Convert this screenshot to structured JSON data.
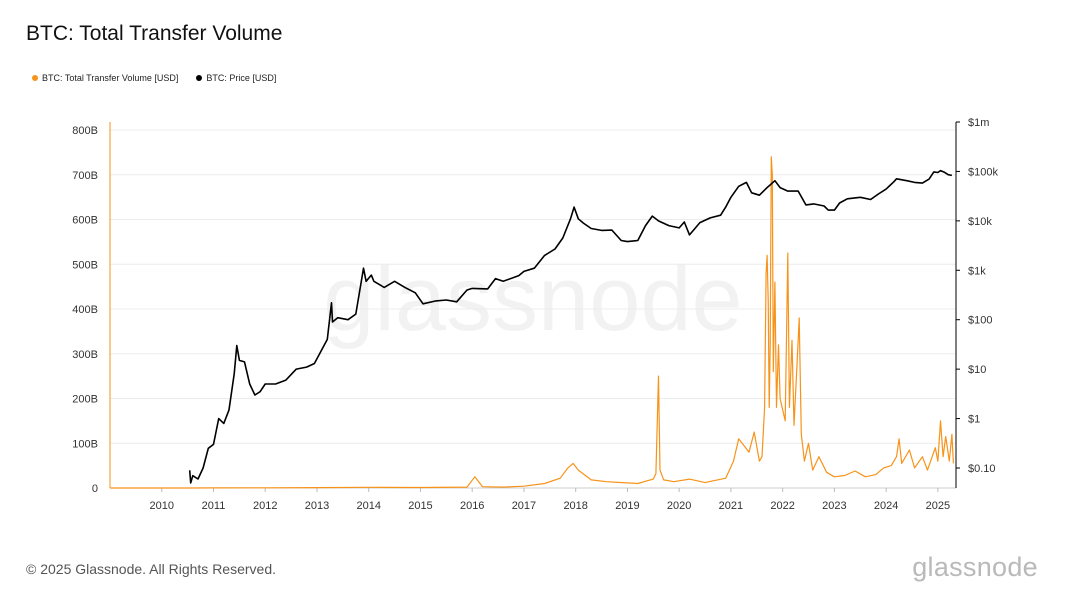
{
  "title": "BTC: Total Transfer Volume",
  "legend": {
    "volume_label": "BTC: Total Transfer Volume [USD]",
    "price_label": "BTC: Price [USD]"
  },
  "colors": {
    "volume": "#f7931a",
    "price": "#000000",
    "grid": "#ececec",
    "axis": "#f7931a"
  },
  "footer": "© 2025 Glassnode. All Rights Reserved.",
  "logo": "glassnode",
  "watermark": "glassnode",
  "chart_data": {
    "type": "line",
    "x_ticks": [
      "2010",
      "2011",
      "2012",
      "2013",
      "2014",
      "2015",
      "2016",
      "2017",
      "2018",
      "2019",
      "2020",
      "2021",
      "2022",
      "2023",
      "2024",
      "2025"
    ],
    "left_axis": {
      "label": "",
      "ticks": [
        "0",
        "100B",
        "200B",
        "300B",
        "400B",
        "500B",
        "600B",
        "700B",
        "800B"
      ],
      "range": [
        0,
        800
      ]
    },
    "right_axis": {
      "label": "",
      "scale": "log",
      "ticks": [
        "$0.10",
        "$1",
        "$10",
        "$100",
        "$1k",
        "$10k",
        "$100k",
        "$1m"
      ],
      "range": [
        0.1,
        1000000
      ]
    },
    "series": [
      {
        "name": "BTC: Total Transfer Volume [USD]",
        "axis": "left",
        "unit": "B USD",
        "points": [
          [
            2009.0,
            0
          ],
          [
            2010.5,
            0.1
          ],
          [
            2011.0,
            0.3
          ],
          [
            2012.0,
            0.4
          ],
          [
            2013.0,
            0.8
          ],
          [
            2014.0,
            1.5
          ],
          [
            2015.0,
            1.2
          ],
          [
            2015.9,
            2
          ],
          [
            2016.05,
            25
          ],
          [
            2016.2,
            3
          ],
          [
            2016.6,
            2
          ],
          [
            2017.0,
            4
          ],
          [
            2017.4,
            10
          ],
          [
            2017.7,
            22
          ],
          [
            2017.85,
            45
          ],
          [
            2017.95,
            55
          ],
          [
            2018.05,
            40
          ],
          [
            2018.3,
            18
          ],
          [
            2018.6,
            14
          ],
          [
            2018.9,
            12
          ],
          [
            2019.2,
            10
          ],
          [
            2019.5,
            20
          ],
          [
            2019.55,
            32
          ],
          [
            2019.6,
            250
          ],
          [
            2019.63,
            40
          ],
          [
            2019.7,
            18
          ],
          [
            2019.9,
            14
          ],
          [
            2020.2,
            20
          ],
          [
            2020.5,
            12
          ],
          [
            2020.9,
            22
          ],
          [
            2021.05,
            60
          ],
          [
            2021.15,
            110
          ],
          [
            2021.25,
            95
          ],
          [
            2021.35,
            80
          ],
          [
            2021.45,
            125
          ],
          [
            2021.55,
            60
          ],
          [
            2021.6,
            70
          ],
          [
            2021.65,
            180
          ],
          [
            2021.68,
            480
          ],
          [
            2021.7,
            520
          ],
          [
            2021.72,
            420
          ],
          [
            2021.74,
            180
          ],
          [
            2021.76,
            320
          ],
          [
            2021.78,
            740
          ],
          [
            2021.8,
            700
          ],
          [
            2021.82,
            260
          ],
          [
            2021.85,
            460
          ],
          [
            2021.88,
            180
          ],
          [
            2021.92,
            320
          ],
          [
            2021.95,
            200
          ],
          [
            2022.05,
            150
          ],
          [
            2022.1,
            525
          ],
          [
            2022.13,
            180
          ],
          [
            2022.18,
            330
          ],
          [
            2022.22,
            140
          ],
          [
            2022.28,
            280
          ],
          [
            2022.32,
            380
          ],
          [
            2022.36,
            120
          ],
          [
            2022.42,
            60
          ],
          [
            2022.5,
            100
          ],
          [
            2022.58,
            40
          ],
          [
            2022.7,
            70
          ],
          [
            2022.85,
            35
          ],
          [
            2023.0,
            25
          ],
          [
            2023.2,
            28
          ],
          [
            2023.4,
            38
          ],
          [
            2023.6,
            25
          ],
          [
            2023.8,
            30
          ],
          [
            2023.95,
            45
          ],
          [
            2024.1,
            50
          ],
          [
            2024.2,
            70
          ],
          [
            2024.25,
            110
          ],
          [
            2024.3,
            55
          ],
          [
            2024.45,
            85
          ],
          [
            2024.55,
            45
          ],
          [
            2024.7,
            70
          ],
          [
            2024.8,
            40
          ],
          [
            2024.95,
            90
          ],
          [
            2025.0,
            60
          ],
          [
            2025.05,
            150
          ],
          [
            2025.1,
            70
          ],
          [
            2025.15,
            115
          ],
          [
            2025.22,
            60
          ],
          [
            2025.27,
            120
          ],
          [
            2025.3,
            55
          ]
        ]
      },
      {
        "name": "BTC: Price [USD]",
        "axis": "right",
        "unit": "USD",
        "points": [
          [
            2010.54,
            0.09
          ],
          [
            2010.56,
            0.05
          ],
          [
            2010.6,
            0.07
          ],
          [
            2010.7,
            0.06
          ],
          [
            2010.8,
            0.1
          ],
          [
            2010.9,
            0.25
          ],
          [
            2011.0,
            0.3
          ],
          [
            2011.1,
            1.0
          ],
          [
            2011.2,
            0.8
          ],
          [
            2011.3,
            1.5
          ],
          [
            2011.4,
            8
          ],
          [
            2011.45,
            30
          ],
          [
            2011.5,
            15
          ],
          [
            2011.6,
            14
          ],
          [
            2011.7,
            5
          ],
          [
            2011.8,
            3
          ],
          [
            2011.9,
            3.5
          ],
          [
            2012.0,
            5
          ],
          [
            2012.2,
            5
          ],
          [
            2012.4,
            6
          ],
          [
            2012.6,
            10
          ],
          [
            2012.8,
            11
          ],
          [
            2012.95,
            13
          ],
          [
            2013.2,
            40
          ],
          [
            2013.28,
            220
          ],
          [
            2013.3,
            90
          ],
          [
            2013.4,
            110
          ],
          [
            2013.6,
            100
          ],
          [
            2013.75,
            130
          ],
          [
            2013.9,
            1100
          ],
          [
            2013.95,
            600
          ],
          [
            2014.05,
            800
          ],
          [
            2014.1,
            600
          ],
          [
            2014.3,
            450
          ],
          [
            2014.5,
            600
          ],
          [
            2014.7,
            450
          ],
          [
            2014.9,
            350
          ],
          [
            2015.05,
            210
          ],
          [
            2015.3,
            240
          ],
          [
            2015.5,
            250
          ],
          [
            2015.7,
            230
          ],
          [
            2015.9,
            400
          ],
          [
            2016.0,
            430
          ],
          [
            2016.3,
            420
          ],
          [
            2016.45,
            680
          ],
          [
            2016.6,
            600
          ],
          [
            2016.9,
            780
          ],
          [
            2017.0,
            950
          ],
          [
            2017.2,
            1100
          ],
          [
            2017.4,
            2000
          ],
          [
            2017.6,
            2700
          ],
          [
            2017.75,
            4500
          ],
          [
            2017.9,
            11000
          ],
          [
            2017.97,
            19000
          ],
          [
            2018.05,
            11000
          ],
          [
            2018.15,
            9000
          ],
          [
            2018.3,
            7000
          ],
          [
            2018.5,
            6400
          ],
          [
            2018.7,
            6500
          ],
          [
            2018.88,
            4000
          ],
          [
            2019.0,
            3800
          ],
          [
            2019.2,
            4000
          ],
          [
            2019.35,
            8000
          ],
          [
            2019.48,
            12500
          ],
          [
            2019.6,
            10000
          ],
          [
            2019.8,
            8000
          ],
          [
            2020.0,
            7200
          ],
          [
            2020.1,
            9500
          ],
          [
            2020.2,
            5200
          ],
          [
            2020.4,
            9200
          ],
          [
            2020.6,
            11500
          ],
          [
            2020.8,
            13000
          ],
          [
            2020.9,
            19000
          ],
          [
            2021.0,
            30000
          ],
          [
            2021.15,
            50000
          ],
          [
            2021.3,
            60000
          ],
          [
            2021.4,
            37000
          ],
          [
            2021.55,
            33000
          ],
          [
            2021.7,
            47000
          ],
          [
            2021.85,
            65000
          ],
          [
            2021.95,
            47000
          ],
          [
            2022.1,
            40000
          ],
          [
            2022.3,
            40000
          ],
          [
            2022.45,
            21000
          ],
          [
            2022.6,
            22000
          ],
          [
            2022.8,
            20000
          ],
          [
            2022.88,
            16500
          ],
          [
            2023.0,
            16500
          ],
          [
            2023.1,
            23000
          ],
          [
            2023.25,
            28000
          ],
          [
            2023.5,
            30000
          ],
          [
            2023.7,
            27000
          ],
          [
            2023.85,
            35000
          ],
          [
            2024.0,
            44000
          ],
          [
            2024.15,
            62000
          ],
          [
            2024.2,
            71000
          ],
          [
            2024.4,
            65000
          ],
          [
            2024.55,
            60000
          ],
          [
            2024.7,
            58000
          ],
          [
            2024.83,
            70000
          ],
          [
            2024.92,
            98000
          ],
          [
            2025.0,
            95000
          ],
          [
            2025.05,
            104000
          ],
          [
            2025.12,
            97000
          ],
          [
            2025.2,
            86000
          ],
          [
            2025.27,
            83000
          ]
        ]
      }
    ]
  }
}
